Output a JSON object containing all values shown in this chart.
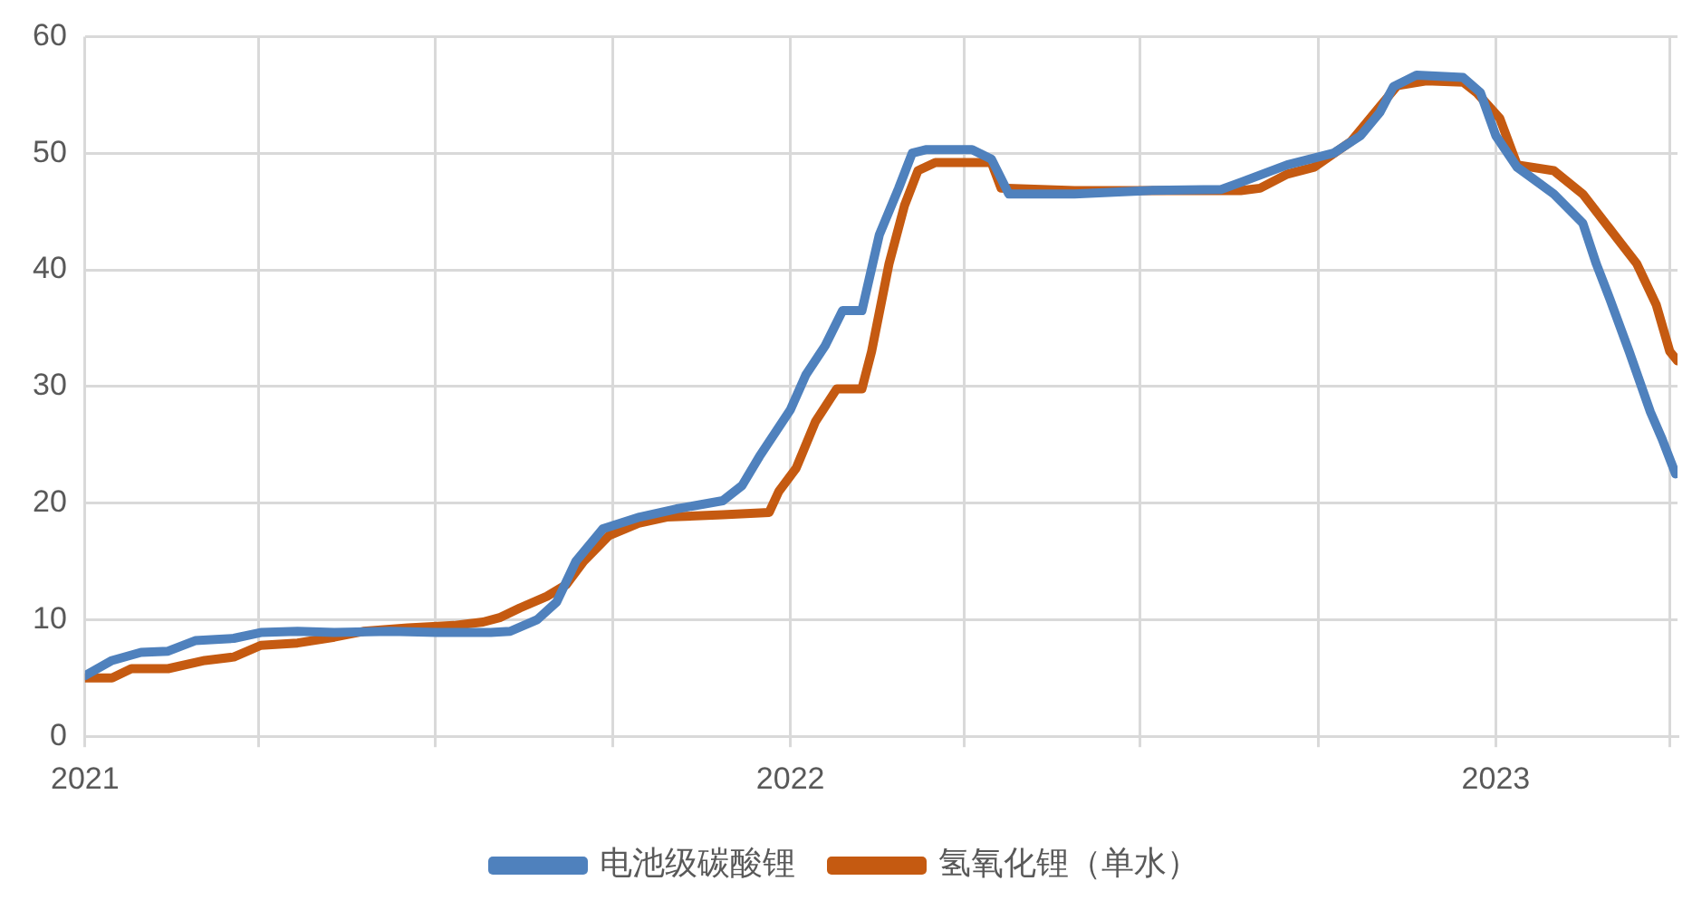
{
  "chart_data": {
    "type": "line",
    "xlim": [
      "2021-01-01",
      "2023-04-05"
    ],
    "xticks": [
      {
        "value": "2021-01-01",
        "label": "2021"
      },
      {
        "value": "2021-04-01",
        "label": null
      },
      {
        "value": "2021-07-01",
        "label": null
      },
      {
        "value": "2021-10-01",
        "label": null
      },
      {
        "value": "2022-01-01",
        "label": "2022"
      },
      {
        "value": "2022-04-01",
        "label": null
      },
      {
        "value": "2022-07-01",
        "label": null
      },
      {
        "value": "2022-10-01",
        "label": null
      },
      {
        "value": "2023-01-01",
        "label": "2023"
      },
      {
        "value": "2023-04-01",
        "label": null
      }
    ],
    "ylim": [
      0,
      60
    ],
    "yticks": [
      0,
      10,
      20,
      30,
      40,
      50,
      60
    ],
    "grid": true,
    "legend": "bottom",
    "marker": "none",
    "line_style": "solid",
    "series": [
      {
        "name": "电池级碳酸锂",
        "color": "#4f81bd",
        "x": [
          "2021-01-01",
          "2021-01-15",
          "2021-01-30",
          "2021-02-13",
          "2021-02-27",
          "2021-03-19",
          "2021-04-02",
          "2021-04-21",
          "2021-05-10",
          "2021-06-08",
          "2021-07-02",
          "2021-07-30",
          "2021-08-09",
          "2021-08-23",
          "2021-09-02",
          "2021-09-12",
          "2021-09-26",
          "2021-10-15",
          "2021-11-03",
          "2021-11-27",
          "2021-12-07",
          "2021-12-16",
          "2022-01-01",
          "2022-01-09",
          "2022-01-19",
          "2022-01-28",
          "2022-02-07",
          "2022-02-16",
          "2022-02-26",
          "2022-03-05",
          "2022-03-12",
          "2022-04-05",
          "2022-04-15",
          "2022-04-24",
          "2022-05-28",
          "2022-07-05",
          "2022-08-12",
          "2022-08-22",
          "2022-09-15",
          "2022-10-09",
          "2022-10-23",
          "2022-11-02",
          "2022-11-09",
          "2022-11-21",
          "2022-12-15",
          "2022-12-24",
          "2023-01-01",
          "2023-01-12",
          "2023-01-22",
          "2023-01-31",
          "2023-02-15",
          "2023-02-22",
          "2023-03-01",
          "2023-03-11",
          "2023-03-22",
          "2023-03-28",
          "2023-04-04"
        ],
        "values": [
          5.2,
          6.5,
          7.2,
          7.3,
          8.2,
          8.4,
          8.9,
          9.0,
          8.9,
          9.0,
          8.9,
          8.9,
          9.0,
          10,
          11.5,
          15,
          17.8,
          18.8,
          19.5,
          20.2,
          21.5,
          24,
          28,
          31,
          33.5,
          36.5,
          36.5,
          43,
          47,
          50,
          50.3,
          50.3,
          49.5,
          46.5,
          46.5,
          46.8,
          46.9,
          47.5,
          49,
          50,
          51.5,
          53.5,
          55.7,
          56.7,
          56.5,
          55.2,
          51.5,
          48.8,
          47.6,
          46.5,
          44,
          40.5,
          37.5,
          33,
          27.8,
          25.5,
          22.5
        ]
      },
      {
        "name": "氢氧化锂（单水）",
        "color": "#c55a11",
        "x": [
          "2021-01-01",
          "2021-01-15",
          "2021-01-25",
          "2021-02-13",
          "2021-03-04",
          "2021-03-19",
          "2021-04-02",
          "2021-04-21",
          "2021-05-10",
          "2021-05-25",
          "2021-06-17",
          "2021-07-11",
          "2021-07-26",
          "2021-08-04",
          "2021-08-14",
          "2021-08-28",
          "2021-09-07",
          "2021-09-16",
          "2021-09-29",
          "2021-10-15",
          "2021-10-29",
          "2021-11-27",
          "2021-12-21",
          "2021-12-26",
          "2022-01-04",
          "2022-01-14",
          "2022-01-25",
          "2022-02-07",
          "2022-02-12",
          "2022-02-21",
          "2022-03-01",
          "2022-03-08",
          "2022-03-17",
          "2022-04-15",
          "2022-04-20",
          "2022-05-28",
          "2022-08-22",
          "2022-09-01",
          "2022-09-15",
          "2022-09-29",
          "2022-10-18",
          "2022-11-02",
          "2022-11-11",
          "2022-11-26",
          "2022-12-15",
          "2022-12-22",
          "2023-01-03",
          "2023-01-12",
          "2023-01-31",
          "2023-02-15",
          "2023-03-01",
          "2023-03-15",
          "2023-03-25",
          "2023-04-01",
          "2023-04-05"
        ],
        "values": [
          5.0,
          5.0,
          5.8,
          5.8,
          6.5,
          6.8,
          7.8,
          8.0,
          8.5,
          9.0,
          9.3,
          9.5,
          9.8,
          10.2,
          11.0,
          12.0,
          13.0,
          15.0,
          17.2,
          18.3,
          18.8,
          19.0,
          19.2,
          21,
          23,
          27,
          29.8,
          29.8,
          33,
          40.5,
          45.5,
          48.5,
          49.2,
          49.2,
          47,
          46.8,
          46.8,
          47,
          48.2,
          48.8,
          51,
          54,
          55.8,
          56.2,
          56.1,
          55.2,
          53,
          49,
          48.5,
          46.5,
          43.5,
          40.5,
          37,
          33,
          32.2
        ]
      }
    ]
  }
}
